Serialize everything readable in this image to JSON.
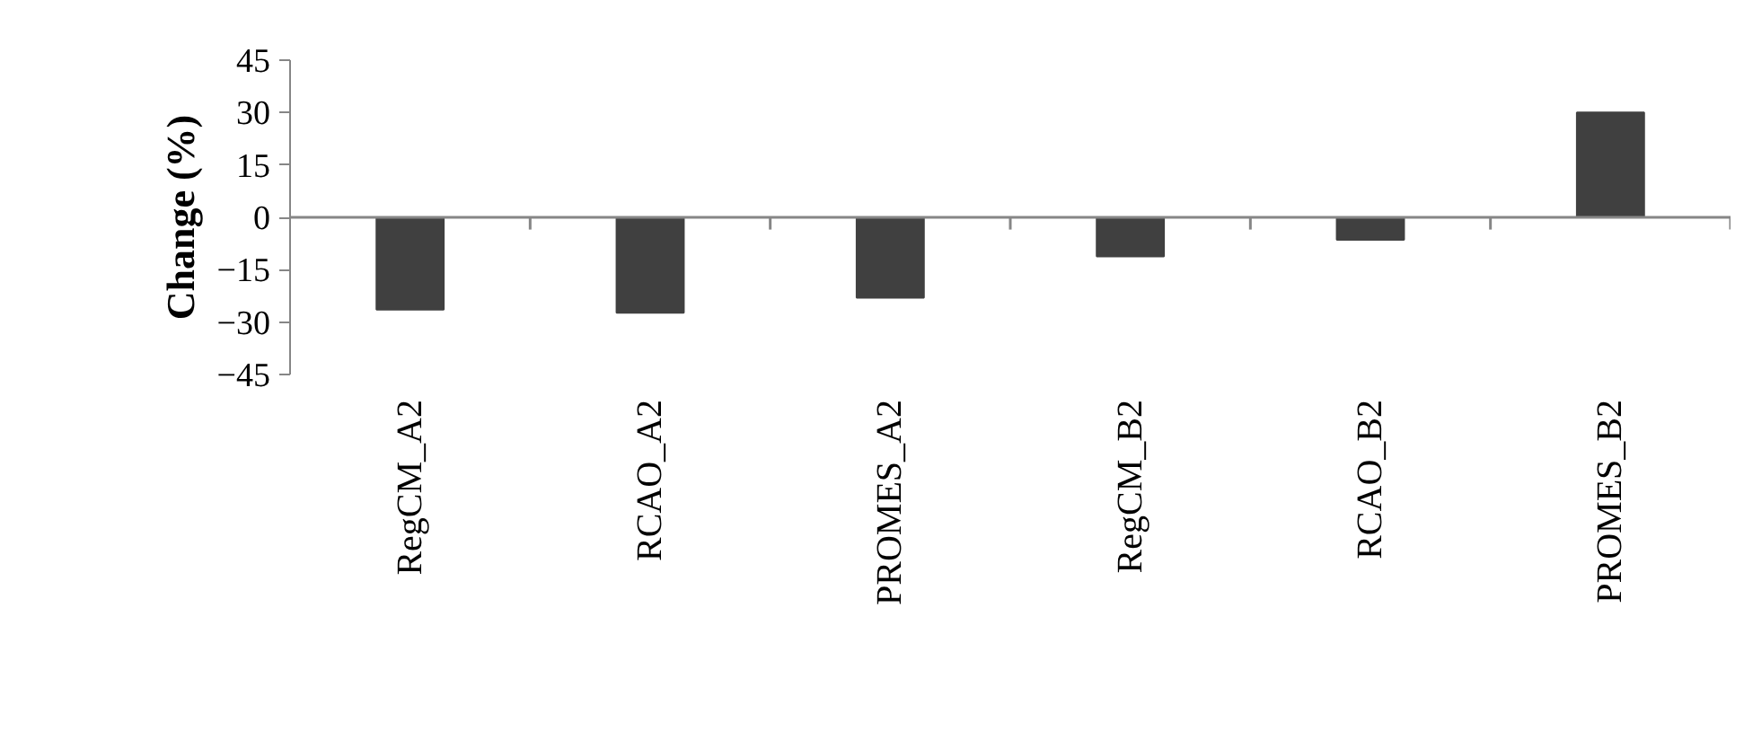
{
  "chart_data": {
    "type": "bar",
    "ylabel": "Change (%)",
    "categories": [
      "RegCM_A2",
      "RCAO_A2",
      "PROMES_A2",
      "RegCM_B2",
      "RCAO_B2",
      "PROMES_B2"
    ],
    "values": [
      -26.4,
      -27.3,
      -23,
      -11.2,
      -6.4,
      30
    ],
    "color": "#404040",
    "ylim": [
      -45,
      45
    ],
    "yticks": [
      -45,
      -30,
      -15,
      0,
      15,
      30,
      45
    ]
  }
}
